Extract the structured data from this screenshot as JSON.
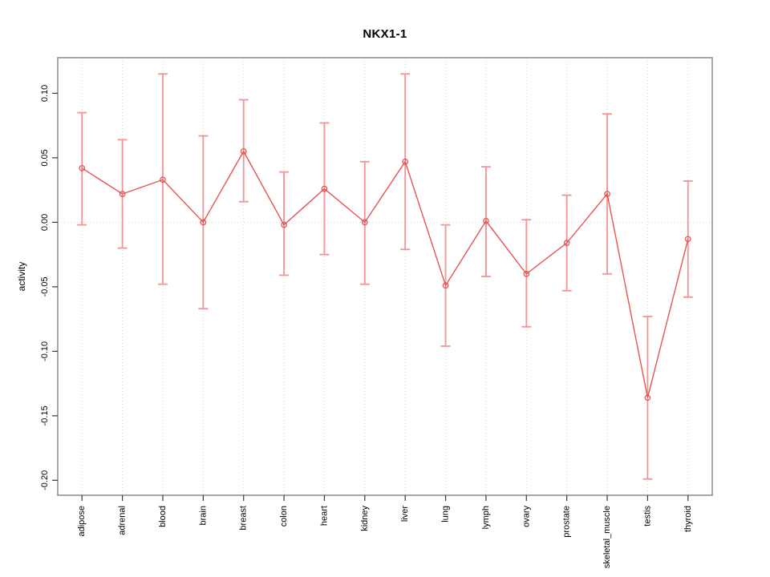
{
  "chart_data": {
    "type": "line",
    "subtype": "points-with-error-bars",
    "title": "NKX1-1",
    "xlabel": "",
    "ylabel": "activity",
    "legend": "none",
    "grid": "vertical dotted gridline per category; horizontal dotted line at y=0",
    "categories": [
      "adipose",
      "adrenal",
      "blood",
      "brain",
      "breast",
      "colon",
      "heart",
      "kidney",
      "liver",
      "lung",
      "lymph",
      "ovary",
      "prostate",
      "skeletal_muscle",
      "testis",
      "thyroid"
    ],
    "series": [
      {
        "name": "activity",
        "values": [
          0.042,
          0.022,
          0.033,
          0.0,
          0.055,
          -0.002,
          0.026,
          0.0,
          0.047,
          -0.049,
          0.001,
          -0.04,
          -0.016,
          0.022,
          -0.136,
          -0.013
        ],
        "lower": [
          -0.002,
          -0.02,
          -0.048,
          -0.067,
          0.016,
          -0.041,
          -0.025,
          -0.048,
          -0.021,
          -0.096,
          -0.042,
          -0.081,
          -0.053,
          -0.04,
          -0.199,
          -0.058
        ],
        "upper": [
          0.085,
          0.064,
          0.115,
          0.067,
          0.095,
          0.039,
          0.077,
          0.047,
          0.115,
          -0.002,
          0.043,
          0.002,
          0.021,
          0.084,
          -0.073,
          0.032
        ]
      }
    ],
    "ylim": [
      -0.2116,
      0.1276
    ],
    "yticks": [
      0.1,
      0.05,
      0.0,
      -0.05,
      -0.1,
      -0.15,
      -0.2
    ],
    "ytick_labels": [
      "0.10",
      "0.05",
      "0.00",
      "-0.05",
      "-0.10",
      "-0.15",
      "-0.20"
    ],
    "colors": {
      "series_line": "#e75454",
      "error_bar": "#f29494",
      "point_stroke": "#e75454",
      "gridline": "#d4d4d4",
      "plot_border": "#919191",
      "tick": "#3a3a3a",
      "text": "#000000",
      "background": "#ffffff"
    }
  }
}
